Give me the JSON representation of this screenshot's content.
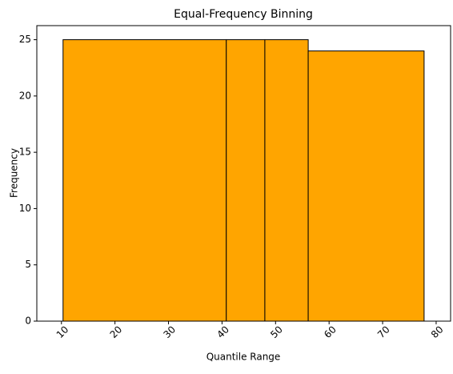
{
  "chart_data": {
    "type": "histogram",
    "title": "Equal-Frequency Binning",
    "xlabel": "Quantile Range",
    "ylabel": "Frequency",
    "bins": [
      10.3,
      40.8,
      48.0,
      56.1,
      77.75
    ],
    "counts": [
      25,
      25,
      25,
      24
    ],
    "color": "#ffa500",
    "edgecolor": "#000000",
    "xlim": [
      5.4,
      82.7
    ],
    "ylim": [
      0,
      26.25
    ],
    "xticks": [
      10,
      20,
      30,
      40,
      50,
      60,
      70,
      80
    ],
    "yticks": [
      0,
      5,
      10,
      15,
      20,
      25
    ]
  }
}
